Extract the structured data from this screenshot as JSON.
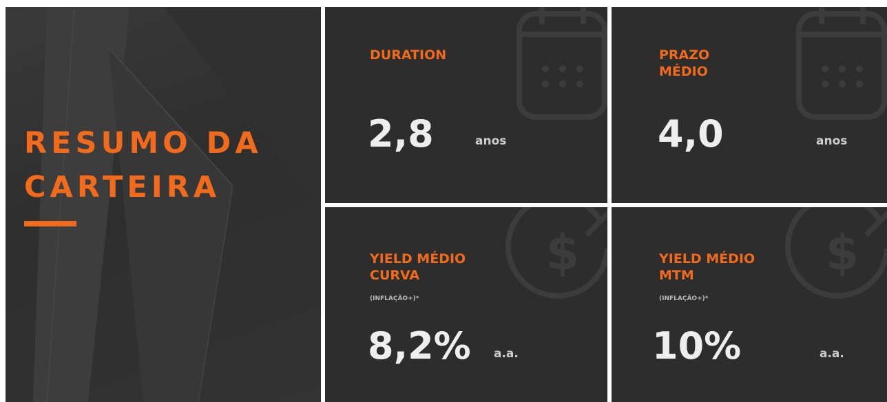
{
  "title": [
    "RESUMO DA",
    "CARTEIRA"
  ],
  "cards": [
    {
      "label": [
        "DURATION"
      ],
      "value": "2,8",
      "unit": "anos"
    },
    {
      "label": [
        "PRAZO",
        "MÉDIO"
      ],
      "value": "4,0",
      "unit": "anos"
    },
    {
      "label": [
        "YIELD MÉDIO",
        "CURVA"
      ],
      "note": "(INFLAÇÃO+)*",
      "value": "8,2%",
      "unit": "a.a."
    },
    {
      "label": [
        "YIELD MÉDIO",
        "MTM"
      ],
      "note": "(INFLAÇÃO+)*",
      "value": "10%",
      "unit": "a.a."
    }
  ]
}
